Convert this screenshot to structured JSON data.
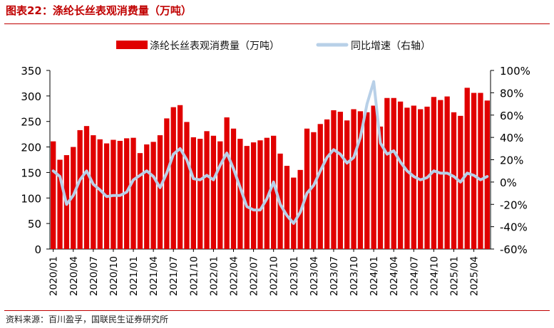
{
  "header": {
    "title": "图表22：涤纶长丝表观消费量（万吨）"
  },
  "footer": {
    "source": "资料来源：百川盈孚，国联民生证券研究所"
  },
  "colors": {
    "bar": "#e00000",
    "line": "#b8d0e8",
    "title": "#c00000"
  },
  "chart_data": {
    "type": "bar",
    "title": "",
    "legend": {
      "position": "top-center"
    },
    "grid": false,
    "x": [
      "2020/01",
      "2020/02",
      "2020/03",
      "2020/04",
      "2020/05",
      "2020/06",
      "2020/07",
      "2020/08",
      "2020/09",
      "2020/10",
      "2020/11",
      "2020/12",
      "2021/01",
      "2021/02",
      "2021/03",
      "2021/04",
      "2021/05",
      "2021/06",
      "2021/07",
      "2021/08",
      "2021/09",
      "2021/10",
      "2021/11",
      "2021/12",
      "2022/01",
      "2022/02",
      "2022/03",
      "2022/04",
      "2022/05",
      "2022/06",
      "2022/07",
      "2022/08",
      "2022/09",
      "2022/10",
      "2022/11",
      "2022/12",
      "2023/01",
      "2023/02",
      "2023/03",
      "2023/04",
      "2023/05",
      "2023/06",
      "2023/07",
      "2023/08",
      "2023/09",
      "2023/10",
      "2023/11",
      "2023/12",
      "2024/01",
      "2024/02",
      "2024/03",
      "2024/04",
      "2024/05",
      "2024/06",
      "2024/07",
      "2024/08",
      "2024/09",
      "2024/10",
      "2024/11",
      "2024/12",
      "2025/01",
      "2025/02",
      "2025/03",
      "2025/04",
      "2025/05",
      "2025/06"
    ],
    "tick_labels": [
      "2020/01",
      "2020/04",
      "2020/07",
      "2020/10",
      "2021/01",
      "2021/04",
      "2021/07",
      "2021/10",
      "2022/01",
      "2022/04",
      "2022/07",
      "2022/10",
      "2023/01",
      "2023/04",
      "2023/07",
      "2023/10",
      "2024/01",
      "2024/04",
      "2024/07",
      "2024/10",
      "2025/01",
      "2025/04"
    ],
    "y_left": {
      "min": 0,
      "max": 350,
      "step": 50,
      "ticks": [
        "0",
        "50",
        "100",
        "150",
        "200",
        "250",
        "300",
        "350"
      ]
    },
    "y_right": {
      "min": -60,
      "max": 100,
      "step": 20,
      "ticks": [
        "-60%",
        "-40%",
        "-20%",
        "0%",
        "20%",
        "40%",
        "60%",
        "80%",
        "100%"
      ]
    },
    "series": [
      {
        "name": "涤纶长丝表观消费量（万吨）",
        "type": "bar",
        "axis": "left",
        "values": [
          211,
          175,
          184,
          200,
          233,
          241,
          223,
          215,
          207,
          214,
          212,
          217,
          218,
          188,
          205,
          210,
          223,
          256,
          278,
          282,
          249,
          219,
          216,
          231,
          222,
          211,
          258,
          236,
          216,
          202,
          209,
          213,
          218,
          222,
          187,
          163,
          140,
          155,
          236,
          229,
          245,
          254,
          272,
          269,
          252,
          274,
          270,
          268,
          281,
          240,
          296,
          296,
          289,
          277,
          281,
          274,
          279,
          298,
          292,
          299,
          268,
          261,
          316,
          306,
          306,
          291
        ]
      },
      {
        "name": "同比增速（右轴）",
        "type": "line",
        "axis": "right",
        "values": [
          10,
          5,
          -20,
          -12,
          2,
          10,
          -2,
          -7,
          -13,
          -12,
          -12,
          -9,
          2,
          6,
          10,
          5,
          -5,
          8,
          25,
          30,
          20,
          3,
          2,
          6,
          2,
          15,
          26,
          12,
          -5,
          -22,
          -25,
          -25,
          -15,
          0,
          -20,
          -30,
          -37,
          -27,
          -10,
          -3,
          10,
          22,
          29,
          25,
          17,
          22,
          40,
          70,
          90,
          35,
          25,
          28,
          18,
          10,
          5,
          2,
          4,
          10,
          8,
          8,
          5,
          0,
          8,
          6,
          2,
          5
        ]
      }
    ]
  }
}
